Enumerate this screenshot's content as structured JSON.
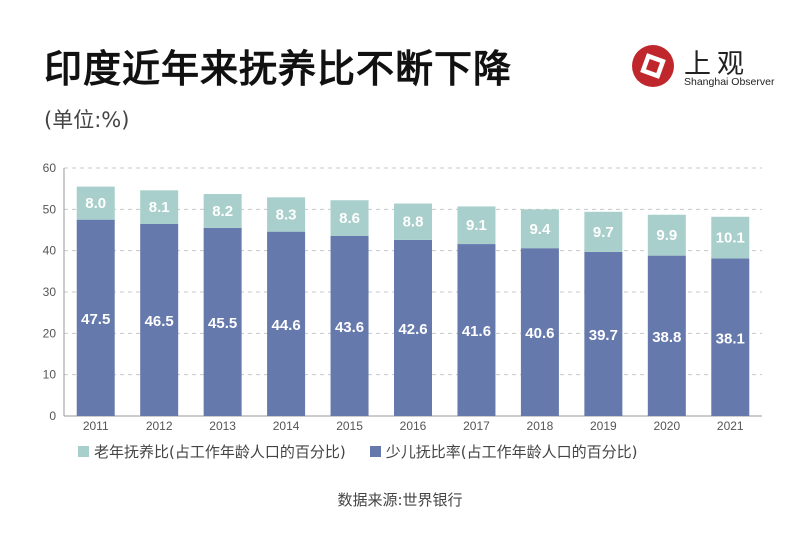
{
  "title": "印度近年来抚养比不断下降",
  "unit_label": "(单位:%)",
  "brand": {
    "name_cn": "上观",
    "name_en": "Shanghai Observer",
    "accent": "#c0272d"
  },
  "source": "数据来源:世界银行",
  "colors": {
    "elderly": "#a8cfcb",
    "youth": "#6679ad",
    "grid": "#c8c8c8",
    "axis": "#999999"
  },
  "chart_data": {
    "type": "bar",
    "stacked": true,
    "categories": [
      "2011",
      "2012",
      "2013",
      "2014",
      "2015",
      "2016",
      "2017",
      "2018",
      "2019",
      "2020",
      "2021"
    ],
    "series": [
      {
        "name": "少儿抚比率(占工作年龄人口的百分比)",
        "key": "youth",
        "values": [
          47.5,
          46.5,
          45.5,
          44.6,
          43.6,
          42.6,
          41.6,
          40.6,
          39.7,
          38.8,
          38.1
        ]
      },
      {
        "name": "老年抚养比(占工作年龄人口的百分比)",
        "key": "elderly",
        "values": [
          8.0,
          8.1,
          8.2,
          8.3,
          8.6,
          8.8,
          9.1,
          9.4,
          9.7,
          9.9,
          10.1
        ]
      }
    ],
    "ylim": [
      0,
      60
    ],
    "yticks": [
      0,
      10,
      20,
      30,
      40,
      50,
      60
    ],
    "grid": true,
    "legend_position": "bottom"
  }
}
